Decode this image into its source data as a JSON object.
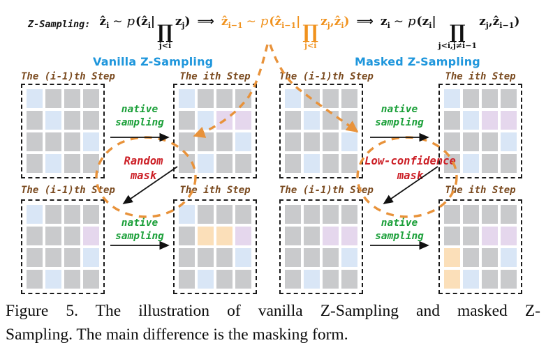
{
  "colors": {
    "formula_orange": "#F0921E",
    "dash_orange": "#E8923A",
    "header_blue": "#1E96DC",
    "step_brown": "#7A4A1F",
    "green": "#1CA03A",
    "red": "#CC1F26",
    "cell_gray": "#C9CACC",
    "cell_blue": "#D9E6F6",
    "cell_purple": "#E5D7ED",
    "cell_orange": "#FBDFB9",
    "text_black": "#111111"
  },
  "formula": {
    "label": "Z-Sampling:",
    "arrow": "⟹",
    "product_symbol": "∏",
    "segments": [
      {
        "color": "#111111",
        "tokens": [
          [
            "b",
            "ẑ"
          ],
          [
            "s",
            "i"
          ],
          [
            "op",
            "∼"
          ],
          [
            "it",
            "p"
          ],
          [
            "t",
            "("
          ],
          [
            "b",
            "ẑ"
          ],
          [
            "s",
            "i"
          ],
          [
            "t",
            "|"
          ],
          [
            "prod",
            "j<i"
          ],
          [
            "b",
            "z"
          ],
          [
            "s",
            "j"
          ],
          [
            "t",
            ")"
          ]
        ]
      },
      {
        "color": "#F0921E",
        "tokens": [
          [
            "b",
            "ẑ"
          ],
          [
            "s",
            "i−1"
          ],
          [
            "op",
            "∼"
          ],
          [
            "it",
            "p"
          ],
          [
            "t",
            "("
          ],
          [
            "b",
            "ẑ"
          ],
          [
            "s",
            "i−1"
          ],
          [
            "t",
            "|"
          ],
          [
            "prod",
            "j<i"
          ],
          [
            "b",
            "z"
          ],
          [
            "s",
            "j"
          ],
          [
            "t",
            ","
          ],
          [
            "b",
            "ẑ"
          ],
          [
            "s",
            "i"
          ],
          [
            "t",
            ")"
          ]
        ]
      },
      {
        "color": "#111111",
        "tokens": [
          [
            "b",
            "z"
          ],
          [
            "s",
            "i"
          ],
          [
            "op",
            "∼"
          ],
          [
            "it",
            "p"
          ],
          [
            "t",
            "("
          ],
          [
            "b",
            "z"
          ],
          [
            "s",
            "i"
          ],
          [
            "t",
            "|"
          ],
          [
            "prod",
            "j<i,j≠i−1"
          ],
          [
            "b",
            "z"
          ],
          [
            "s",
            "j"
          ],
          [
            "t",
            ","
          ],
          [
            "b",
            "ẑ"
          ],
          [
            "s",
            "i−1"
          ],
          [
            "t",
            ")"
          ]
        ]
      }
    ]
  },
  "sections": [
    {
      "title": "Vanilla Z-Sampling",
      "mask": {
        "line1": "Random",
        "line2": "mask"
      }
    },
    {
      "title": "Masked Z-Sampling",
      "mask": {
        "line1": "Low-confidence",
        "line2": "mask"
      }
    }
  ],
  "step_labels": {
    "prev": "The (i-1)th Step",
    "cur": "The ith Step"
  },
  "sampling": {
    "line1": "native",
    "line2": "sampling"
  },
  "cell_legend": {
    "g": "gray",
    "b": "blue",
    "p": "purple",
    "o": "orange"
  },
  "grids": {
    "vanilla_top_prev": [
      [
        "b",
        "g",
        "g",
        "g"
      ],
      [
        "g",
        "b",
        "g",
        "g"
      ],
      [
        "g",
        "g",
        "g",
        "b"
      ],
      [
        "g",
        "b",
        "g",
        "g"
      ]
    ],
    "vanilla_top_cur": [
      [
        "b",
        "g",
        "g",
        "g"
      ],
      [
        "g",
        "b",
        "p",
        "p"
      ],
      [
        "g",
        "g",
        "g",
        "b"
      ],
      [
        "g",
        "b",
        "g",
        "g"
      ]
    ],
    "vanilla_bot_prev": [
      [
        "b",
        "g",
        "g",
        "g"
      ],
      [
        "g",
        "g",
        "g",
        "p"
      ],
      [
        "g",
        "g",
        "g",
        "b"
      ],
      [
        "g",
        "b",
        "g",
        "g"
      ]
    ],
    "vanilla_bot_cur": [
      [
        "b",
        "g",
        "g",
        "g"
      ],
      [
        "g",
        "o",
        "o",
        "p"
      ],
      [
        "g",
        "g",
        "g",
        "b"
      ],
      [
        "g",
        "b",
        "g",
        "g"
      ]
    ],
    "masked_top_prev": [
      [
        "b",
        "g",
        "g",
        "g"
      ],
      [
        "g",
        "b",
        "g",
        "g"
      ],
      [
        "g",
        "g",
        "g",
        "b"
      ],
      [
        "g",
        "b",
        "g",
        "g"
      ]
    ],
    "masked_top_cur": [
      [
        "b",
        "g",
        "g",
        "g"
      ],
      [
        "g",
        "b",
        "p",
        "p"
      ],
      [
        "g",
        "g",
        "g",
        "b"
      ],
      [
        "g",
        "b",
        "g",
        "g"
      ]
    ],
    "masked_bot_prev": [
      [
        "g",
        "g",
        "g",
        "g"
      ],
      [
        "g",
        "g",
        "p",
        "p"
      ],
      [
        "g",
        "g",
        "g",
        "b"
      ],
      [
        "g",
        "b",
        "g",
        "g"
      ]
    ],
    "masked_bot_cur": [
      [
        "g",
        "g",
        "g",
        "g"
      ],
      [
        "g",
        "g",
        "p",
        "p"
      ],
      [
        "o",
        "g",
        "g",
        "b"
      ],
      [
        "o",
        "b",
        "g",
        "g"
      ]
    ]
  },
  "caption": {
    "line1": "Figure 5.  The illustration of vanilla Z-Sampling and masked Z-",
    "line2": "Sampling. The main difference is the masking form."
  }
}
